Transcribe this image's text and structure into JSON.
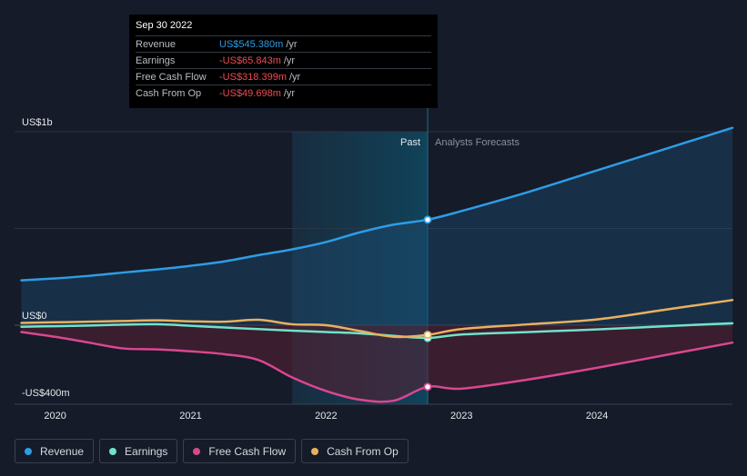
{
  "tooltip": {
    "date": "Sep 30 2022",
    "rows": [
      {
        "label": "Revenue",
        "value": "US$545.380m",
        "unit": "/yr",
        "color": "#2d9de5"
      },
      {
        "label": "Earnings",
        "value": "-US$65.843m",
        "unit": "/yr",
        "color": "#ef4b55"
      },
      {
        "label": "Free Cash Flow",
        "value": "-US$318.399m",
        "unit": "/yr",
        "color": "#ef4b55"
      },
      {
        "label": "Cash From Op",
        "value": "-US$49.698m",
        "unit": "/yr",
        "color": "#ef4b55"
      }
    ]
  },
  "labels": {
    "past": "Past",
    "forecast": "Analysts Forecasts"
  },
  "legend": [
    {
      "label": "Revenue",
      "color": "#2d9de5"
    },
    {
      "label": "Earnings",
      "color": "#6fe3c9"
    },
    {
      "label": "Free Cash Flow",
      "color": "#d9478f"
    },
    {
      "label": "Cash From Op",
      "color": "#e8b15f"
    }
  ],
  "chart_data": {
    "type": "line",
    "y_tick_labels": [
      {
        "value": 1000,
        "label": "US$1b"
      },
      {
        "value": 0,
        "label": "US$0"
      },
      {
        "value": -400,
        "label": "-US$400m"
      }
    ],
    "ylim": [
      -470,
      1060
    ],
    "xlim": [
      2019.7,
      2025.0
    ],
    "x_ticks": [
      {
        "value": 2020,
        "label": "2020"
      },
      {
        "value": 2021,
        "label": "2021"
      },
      {
        "value": 2022,
        "label": "2022"
      },
      {
        "value": 2023,
        "label": "2023"
      },
      {
        "value": 2024,
        "label": "2024"
      }
    ],
    "past_region_start": 2021.75,
    "divider_x": 2022.75,
    "series": [
      {
        "name": "Revenue",
        "color": "#2d9de5",
        "points": [
          [
            2019.75,
            232
          ],
          [
            2020.0,
            242
          ],
          [
            2020.25,
            255
          ],
          [
            2020.5,
            272
          ],
          [
            2020.75,
            288
          ],
          [
            2021.0,
            307
          ],
          [
            2021.25,
            330
          ],
          [
            2021.5,
            362
          ],
          [
            2021.75,
            392
          ],
          [
            2022.0,
            430
          ],
          [
            2022.25,
            480
          ],
          [
            2022.5,
            520
          ],
          [
            2022.75,
            545.38
          ],
          [
            2023.0,
            590
          ],
          [
            2023.5,
            690
          ],
          [
            2024.0,
            800
          ],
          [
            2024.5,
            910
          ],
          [
            2025.0,
            1020
          ]
        ]
      },
      {
        "name": "Earnings",
        "color": "#6fe3c9",
        "points": [
          [
            2019.75,
            -8
          ],
          [
            2020.0,
            -5
          ],
          [
            2020.25,
            -2
          ],
          [
            2020.5,
            3
          ],
          [
            2020.75,
            5
          ],
          [
            2021.0,
            -3
          ],
          [
            2021.25,
            -12
          ],
          [
            2021.5,
            -20
          ],
          [
            2021.75,
            -28
          ],
          [
            2022.0,
            -35
          ],
          [
            2022.25,
            -42
          ],
          [
            2022.5,
            -55
          ],
          [
            2022.75,
            -65.843
          ],
          [
            2023.0,
            -48
          ],
          [
            2023.5,
            -35
          ],
          [
            2024.0,
            -22
          ],
          [
            2024.5,
            -5
          ],
          [
            2025.0,
            10
          ]
        ]
      },
      {
        "name": "Free Cash Flow",
        "color": "#d9478f",
        "points": [
          [
            2019.75,
            -35
          ],
          [
            2020.0,
            -60
          ],
          [
            2020.25,
            -90
          ],
          [
            2020.5,
            -120
          ],
          [
            2020.75,
            -125
          ],
          [
            2021.0,
            -135
          ],
          [
            2021.25,
            -150
          ],
          [
            2021.5,
            -180
          ],
          [
            2021.75,
            -270
          ],
          [
            2022.0,
            -340
          ],
          [
            2022.25,
            -385
          ],
          [
            2022.5,
            -390
          ],
          [
            2022.75,
            -318.399
          ],
          [
            2023.0,
            -328
          ],
          [
            2023.5,
            -280
          ],
          [
            2024.0,
            -220
          ],
          [
            2024.5,
            -155
          ],
          [
            2025.0,
            -90
          ]
        ]
      },
      {
        "name": "Cash From Op",
        "color": "#e8b15f",
        "points": [
          [
            2019.75,
            12
          ],
          [
            2020.0,
            15
          ],
          [
            2020.25,
            18
          ],
          [
            2020.5,
            22
          ],
          [
            2020.75,
            25
          ],
          [
            2021.0,
            20
          ],
          [
            2021.25,
            18
          ],
          [
            2021.5,
            28
          ],
          [
            2021.75,
            5
          ],
          [
            2022.0,
            0
          ],
          [
            2022.25,
            -30
          ],
          [
            2022.5,
            -60
          ],
          [
            2022.75,
            -49.698
          ],
          [
            2023.0,
            -20
          ],
          [
            2023.5,
            5
          ],
          [
            2024.0,
            30
          ],
          [
            2024.5,
            80
          ],
          [
            2025.0,
            130
          ]
        ]
      }
    ]
  }
}
